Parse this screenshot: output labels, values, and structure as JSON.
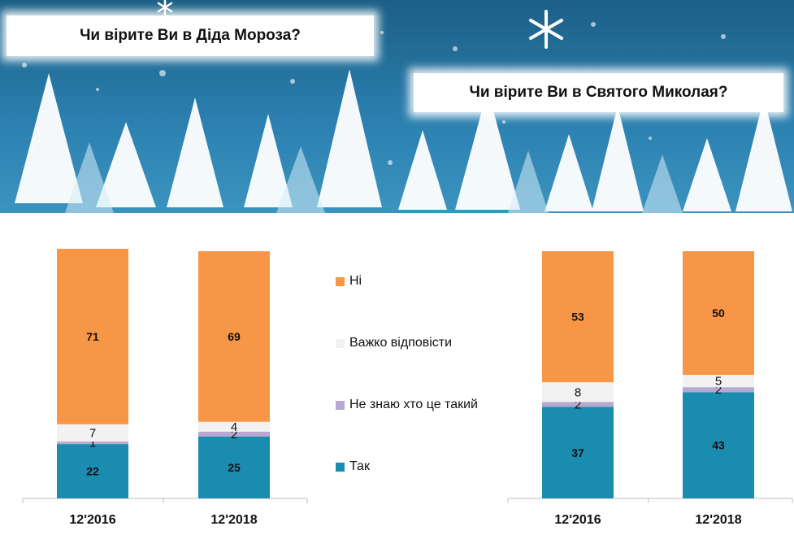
{
  "questions": {
    "q1": "Чи вірите Ви в Діда Мороза?",
    "q2": "Чи вірите Ви в Святого Миколая?"
  },
  "colors": {
    "ni": "#f79646",
    "vazhko": "#f2f2f2",
    "ne_znayu": "#b7a8d1",
    "tak": "#1a8cb0",
    "banner": "#2a7fae"
  },
  "legend": [
    {
      "label": "Ні",
      "color": "#f79646"
    },
    {
      "label": "Важко відповісти",
      "color": "#f2f2f2"
    },
    {
      "label": "Не знаю хто це такий",
      "color": "#b7a8d1"
    },
    {
      "label": "Так",
      "color": "#1a8cb0"
    }
  ],
  "chart_data": [
    {
      "type": "bar",
      "stacked": true,
      "title": "Чи вірите Ви в Діда Мороза?",
      "categories": [
        "12'2016",
        "12'2018"
      ],
      "series": [
        {
          "name": "Так",
          "values": [
            22,
            25
          ],
          "color": "#1a8cb0"
        },
        {
          "name": "Не знаю хто це такий",
          "values": [
            1,
            2
          ],
          "color": "#b7a8d1"
        },
        {
          "name": "Важко відповісти",
          "values": [
            7,
            4
          ],
          "color": "#f2f2f2"
        },
        {
          "name": "Ні",
          "values": [
            71,
            69
          ],
          "color": "#f79646"
        }
      ],
      "ylim": [
        0,
        100
      ]
    },
    {
      "type": "bar",
      "stacked": true,
      "title": "Чи вірите Ви в Святого Миколая?",
      "categories": [
        "12'2016",
        "12'2018"
      ],
      "series": [
        {
          "name": "Так",
          "values": [
            37,
            43
          ],
          "color": "#1a8cb0"
        },
        {
          "name": "Не знаю хто це такий",
          "values": [
            2,
            2
          ],
          "color": "#b7a8d1"
        },
        {
          "name": "Важко відповісти",
          "values": [
            8,
            5
          ],
          "color": "#f2f2f2"
        },
        {
          "name": "Ні",
          "values": [
            53,
            50
          ],
          "color": "#f79646"
        }
      ],
      "ylim": [
        0,
        100
      ]
    }
  ]
}
